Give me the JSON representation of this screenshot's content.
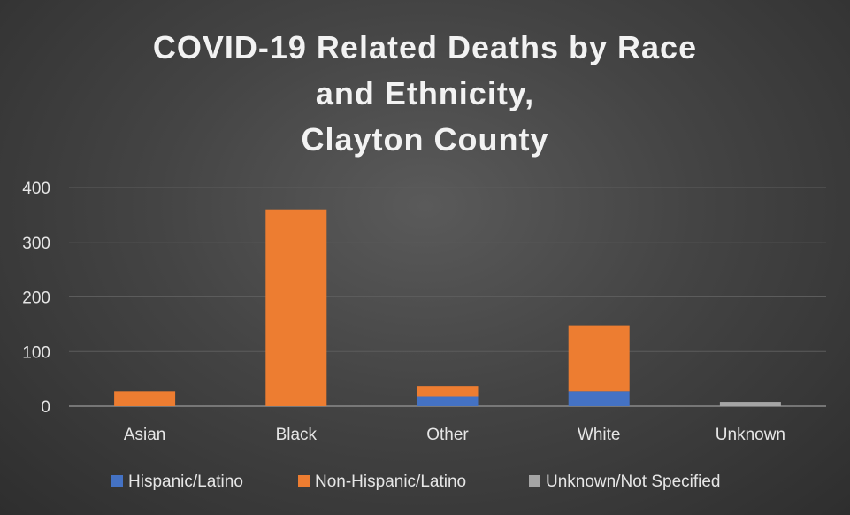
{
  "chart_data": {
    "type": "bar",
    "stacked": true,
    "title_lines": [
      "COVID-19 Related Deaths by Race",
      "and Ethnicity,",
      "Clayton County"
    ],
    "categories": [
      "Asian",
      "Black",
      "Other",
      "White",
      "Unknown"
    ],
    "series": [
      {
        "name": "Hispanic/Latino",
        "color": "#4472c4",
        "values": [
          0,
          0,
          17,
          27,
          0
        ]
      },
      {
        "name": "Non-Hispanic/Latino",
        "color": "#ed7d31",
        "values": [
          27,
          360,
          20,
          121,
          0
        ]
      },
      {
        "name": "Unknown/Not Specified",
        "color": "#a5a5a5",
        "values": [
          0,
          0,
          0,
          0,
          8
        ]
      }
    ],
    "ylim": [
      0,
      400
    ],
    "yticks": [
      0,
      100,
      200,
      300,
      400
    ],
    "grid": true,
    "legend_position": "bottom"
  }
}
